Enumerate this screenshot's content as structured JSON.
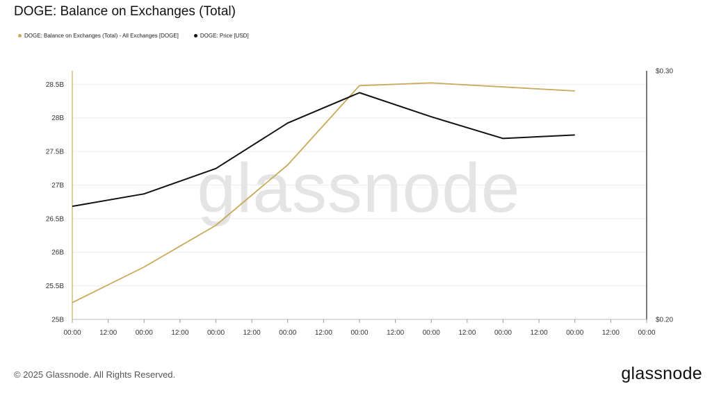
{
  "page": {
    "copyright": "© 2025 Glassnode. All Rights Reserved.",
    "logo": "glassnode",
    "watermark": "glassnode"
  },
  "chart_data": {
    "type": "line",
    "title": "DOGE: Balance on Exchanges (Total)",
    "legend_placement": "top-left",
    "grid": true,
    "x_ticks": [
      "00:00",
      "12:00",
      "00:00",
      "12:00",
      "00:00",
      "12:00",
      "00:00",
      "12:00",
      "00:00",
      "12:00",
      "00:00",
      "12:00",
      "00:00",
      "12:00",
      "00:00",
      "12:00",
      "00:00"
    ],
    "x": [
      0,
      2,
      4,
      6,
      8,
      10,
      12,
      14
    ],
    "y_left": {
      "ylim": [
        25,
        28.7
      ],
      "ticks": [
        25,
        25.5,
        26,
        26.5,
        27,
        27.5,
        28,
        28.5
      ],
      "tick_labels": [
        "25B",
        "25.5B",
        "26B",
        "26.5B",
        "27B",
        "27.5B",
        "28B",
        "28.5B"
      ]
    },
    "y_right": {
      "ylim": [
        0.2,
        0.3
      ],
      "ticks": [
        0.2,
        0.3
      ],
      "tick_labels": [
        "$0.20",
        "$0.30"
      ]
    },
    "series": [
      {
        "name": "DOGE: Balance on Exchanges (Total) - All Exchanges [DOGE]",
        "axis": "left",
        "color": "#c9a95a",
        "values": [
          25.25,
          25.78,
          26.4,
          27.3,
          28.48,
          28.52,
          28.46,
          28.4
        ]
      },
      {
        "name": "DOGE: Price [USD]",
        "axis": "right",
        "color": "#111111",
        "values": [
          0.2455,
          0.2505,
          0.2607,
          0.279,
          0.2912,
          0.2815,
          0.2728,
          0.2742
        ]
      }
    ]
  }
}
